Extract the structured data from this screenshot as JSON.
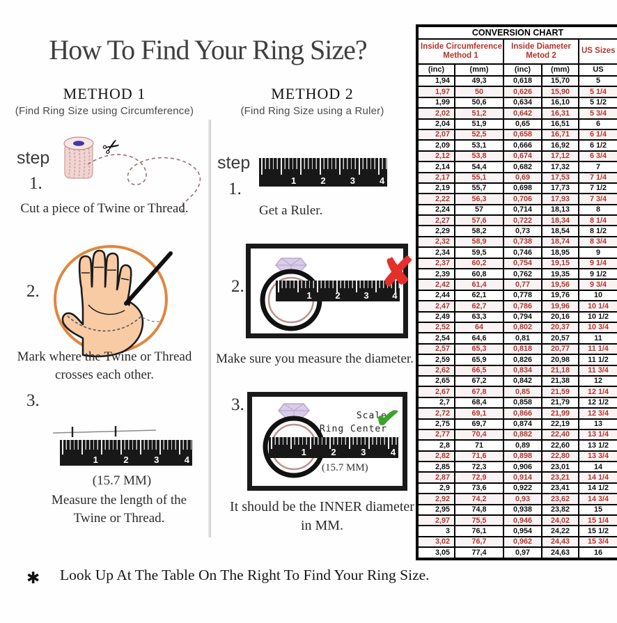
{
  "title": "How To Find Your Ring Size?",
  "ruler_numbers": [
    "1",
    "2",
    "3",
    "4"
  ],
  "icons": {
    "scissors": "✂",
    "x_mark": "✘",
    "check": "✔",
    "asterisk": "✱"
  },
  "colors": {
    "accent_red": "#b5332c",
    "x_red": "#e62e2a",
    "check_green": "#3da32f",
    "circle_orange": "#e0873d",
    "skin": "#f8cba4",
    "twine_pink": "#f0d6d3",
    "diamond_lavender": "#d9cce9",
    "ruler_black": "#181818"
  },
  "method1": {
    "heading": "METHOD 1",
    "subheading": "(Find Ring Size using Circumference)",
    "step_label": "step",
    "step1": {
      "num": "1.",
      "caption": "Cut a piece of Twine or Thread."
    },
    "step2": {
      "num": "2.",
      "caption_line1": "Mark where the Twine or Thread",
      "caption_line2": "crosses each other."
    },
    "step3": {
      "num": "3.",
      "note": "(15.7 MM)",
      "caption_line1": "Measure the length of the",
      "caption_line2": "Twine or Thread."
    }
  },
  "method2": {
    "heading": "METHOD 2",
    "subheading": "(Find Ring Size using a Ruler)",
    "step_label": "step",
    "step1": {
      "num": "1.",
      "caption": "Get a Ruler."
    },
    "step2": {
      "num": "2.",
      "caption": "Make sure you measure the diameter."
    },
    "step3": {
      "num": "3.",
      "annotation_line1": "Scale",
      "annotation_line2": "Ring Center",
      "note": "(15.7 MM)",
      "caption_line1": "It should be the INNER diameter",
      "caption_line2": "in MM."
    }
  },
  "footnote": {
    "marker": "✱",
    "text": "Look Up At The Table On The Right To Find Your Ring Size."
  },
  "chart": {
    "type": "table",
    "title": "CONVERSION CHART",
    "group_headers": [
      {
        "line1": "Inside Circumference",
        "line2": "Method 1"
      },
      {
        "line1": "Inside Diameter",
        "line2": "Metod 2"
      },
      {
        "label": "US Sizes"
      }
    ],
    "sub_headers": [
      "(inc)",
      "(mm)",
      "(inc)",
      "(mm)",
      "US"
    ],
    "rows": [
      [
        "1,94",
        "49,3",
        "0,618",
        "15,70",
        "5"
      ],
      [
        "1,97",
        "50",
        "0,626",
        "15,90",
        "5 1/4"
      ],
      [
        "1,99",
        "50,6",
        "0,634",
        "16,10",
        "5 1/2"
      ],
      [
        "2,02",
        "51,2",
        "0,642",
        "16,31",
        "5 3/4"
      ],
      [
        "2,04",
        "51,9",
        "0,65",
        "16,51",
        "6"
      ],
      [
        "2,07",
        "52,5",
        "0,658",
        "16,71",
        "6 1/4"
      ],
      [
        "2,09",
        "53,1",
        "0,666",
        "16,92",
        "6 1/2"
      ],
      [
        "2,12",
        "53,8",
        "0,674",
        "17,12",
        "6 3/4"
      ],
      [
        "2,14",
        "54,4",
        "0,682",
        "17,32",
        "7"
      ],
      [
        "2,17",
        "55,1",
        "0,69",
        "17,53",
        "7 1/4"
      ],
      [
        "2,19",
        "55,7",
        "0,698",
        "17,73",
        "7 1/2"
      ],
      [
        "2,22",
        "56,3",
        "0,706",
        "17,93",
        "7 3/4"
      ],
      [
        "2,24",
        "57",
        "0,714",
        "18,13",
        "8"
      ],
      [
        "2,27",
        "57,6",
        "0,722",
        "18,34",
        "8 1/4"
      ],
      [
        "2,29",
        "58,2",
        "0,73",
        "18,54",
        "8 1/2"
      ],
      [
        "2,32",
        "58,9",
        "0,738",
        "18,74",
        "8 3/4"
      ],
      [
        "2,34",
        "59,5",
        "0,746",
        "18,95",
        "9"
      ],
      [
        "2,37",
        "60,2",
        "0,754",
        "19,15",
        "9 1/4"
      ],
      [
        "2,39",
        "60,8",
        "0,762",
        "19,35",
        "9 1/2"
      ],
      [
        "2,42",
        "61,4",
        "0,77",
        "19,56",
        "9 3/4"
      ],
      [
        "2,44",
        "62,1",
        "0,778",
        "19,76",
        "10"
      ],
      [
        "2,47",
        "62,7",
        "0,786",
        "19,96",
        "10 1/4"
      ],
      [
        "2,49",
        "63,3",
        "0,794",
        "20,16",
        "10 1/2"
      ],
      [
        "2,52",
        "64",
        "0,802",
        "20,37",
        "10 3/4"
      ],
      [
        "2,54",
        "64,6",
        "0,81",
        "20,57",
        "11"
      ],
      [
        "2,57",
        "65,3",
        "0,818",
        "20,77",
        "11 1/4"
      ],
      [
        "2,59",
        "65,9",
        "0,826",
        "20,98",
        "11 1/2"
      ],
      [
        "2,62",
        "66,5",
        "0,834",
        "21,18",
        "11 3/4"
      ],
      [
        "2,65",
        "67,2",
        "0,842",
        "21,38",
        "12"
      ],
      [
        "2,67",
        "67,8",
        "0,85",
        "21,59",
        "12 1/4"
      ],
      [
        "2,7",
        "68,4",
        "0,858",
        "21,79",
        "12 1/2"
      ],
      [
        "2,72",
        "69,1",
        "0,866",
        "21,99",
        "12 3/4"
      ],
      [
        "2,75",
        "69,7",
        "0,874",
        "22,19",
        "13"
      ],
      [
        "2,77",
        "70,4",
        "0,882",
        "22,40",
        "13 1/4"
      ],
      [
        "2,8",
        "71",
        "0,89",
        "22,60",
        "13 1/2"
      ],
      [
        "2,82",
        "71,6",
        "0,898",
        "22,80",
        "13 3/4"
      ],
      [
        "2,85",
        "72,3",
        "0,906",
        "23,01",
        "14"
      ],
      [
        "2,87",
        "72,9",
        "0,914",
        "23,21",
        "14 1/4"
      ],
      [
        "2,9",
        "73,6",
        "0,922",
        "23,41",
        "14 1/2"
      ],
      [
        "2,92",
        "74,2",
        "0,93",
        "23,62",
        "14 3/4"
      ],
      [
        "2,95",
        "74,8",
        "0,938",
        "23,82",
        "15"
      ],
      [
        "2,97",
        "75,5",
        "0,946",
        "24,02",
        "15 1/4"
      ],
      [
        "3",
        "76,1",
        "0,954",
        "24,22",
        "15 1/2"
      ],
      [
        "3,02",
        "76,7",
        "0,962",
        "24,43",
        "15 3/4"
      ],
      [
        "3,05",
        "77,4",
        "0,97",
        "24,63",
        "16"
      ]
    ]
  }
}
